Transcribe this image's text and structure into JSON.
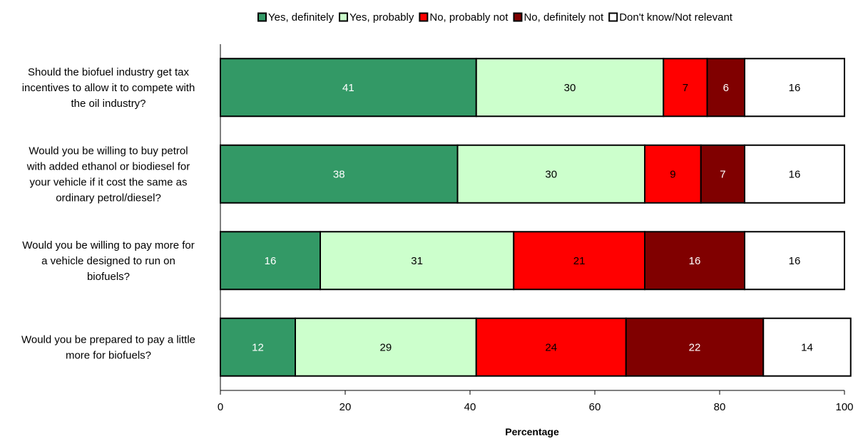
{
  "chart_data": {
    "type": "bar",
    "orientation": "horizontal",
    "stacked": true,
    "xlabel": "Percentage",
    "xlim": [
      0,
      100
    ],
    "xticks": [
      0,
      20,
      40,
      60,
      80,
      100
    ],
    "legend_position": "top",
    "grid": false,
    "categories": [
      [
        "Should the biofuel industry get tax",
        "incentives to allow it to compete with",
        "the oil industry?"
      ],
      [
        "Would you be willing to buy petrol",
        "with added ethanol or biodiesel for",
        "your vehicle if it cost the same as",
        "ordinary petrol/diesel?"
      ],
      [
        "Would you be willing to pay more for",
        "a vehicle designed to run on",
        "biofuels?"
      ],
      [
        "Would you be prepared to pay a little",
        "more for biofuels?"
      ]
    ],
    "series": [
      {
        "name": "Yes, definitely",
        "color": "#339966",
        "label_color": "#ffffff",
        "values": [
          41,
          38,
          16,
          12
        ]
      },
      {
        "name": "Yes, probably",
        "color": "#ccffcc",
        "label_color": "#000000",
        "values": [
          30,
          30,
          31,
          29
        ]
      },
      {
        "name": "No, probably not",
        "color": "#ff0000",
        "label_color": "#000000",
        "values": [
          7,
          9,
          21,
          24
        ]
      },
      {
        "name": "No, definitely not",
        "color": "#800000",
        "label_color": "#ffffff",
        "values": [
          6,
          7,
          16,
          22
        ]
      },
      {
        "name": "Don't know/Not relevant",
        "color": "#ffffff",
        "label_color": "#000000",
        "values": [
          16,
          16,
          16,
          14
        ]
      }
    ]
  }
}
